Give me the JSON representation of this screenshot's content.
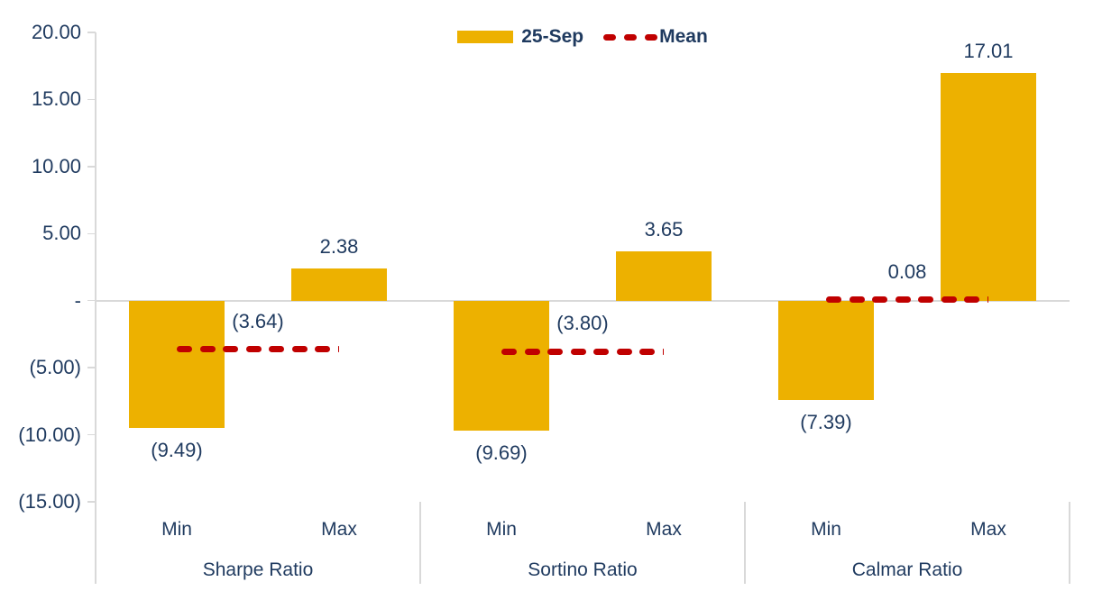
{
  "chart_data": {
    "type": "bar",
    "title": "",
    "legend": [
      {
        "label": "25-Sep",
        "swatch": "bar-swatch",
        "color": "#EDB100"
      },
      {
        "label": "Mean",
        "swatch": "dashed-line-swatch",
        "color": "#C00000"
      }
    ],
    "legend_position": "top-center",
    "grid": "off",
    "y_axis": {
      "min": -15,
      "max": 20,
      "step": 5,
      "tick_labels": [
        "20.00",
        "15.00",
        "10.00",
        "5.00",
        "-",
        "(5.00)",
        "(10.00)",
        "(15.00)"
      ],
      "number_format": "accounting"
    },
    "category_labels": [
      "Min",
      "Max"
    ],
    "groups": [
      {
        "label": "Sharpe Ratio",
        "bars": [
          {
            "category": "Min",
            "value": -9.49,
            "label": "(9.49)"
          },
          {
            "category": "Max",
            "value": 2.38,
            "label": "2.38"
          }
        ],
        "mean": {
          "value": -3.64,
          "label": "(3.64)"
        }
      },
      {
        "label": "Sortino Ratio",
        "bars": [
          {
            "category": "Min",
            "value": -9.69,
            "label": "(9.69)"
          },
          {
            "category": "Max",
            "value": 3.65,
            "label": "3.65"
          }
        ],
        "mean": {
          "value": -3.8,
          "label": "(3.80)"
        }
      },
      {
        "label": "Calmar Ratio",
        "bars": [
          {
            "category": "Min",
            "value": -7.39,
            "label": "(7.39)"
          },
          {
            "category": "Max",
            "value": 17.01,
            "label": "17.01"
          }
        ],
        "mean": {
          "value": 0.08,
          "label": "0.08"
        }
      }
    ],
    "colors": {
      "bar": "#EDB100",
      "mean": "#C00000",
      "text": "#1F3A5F",
      "axis": "#D9D9D9"
    }
  }
}
